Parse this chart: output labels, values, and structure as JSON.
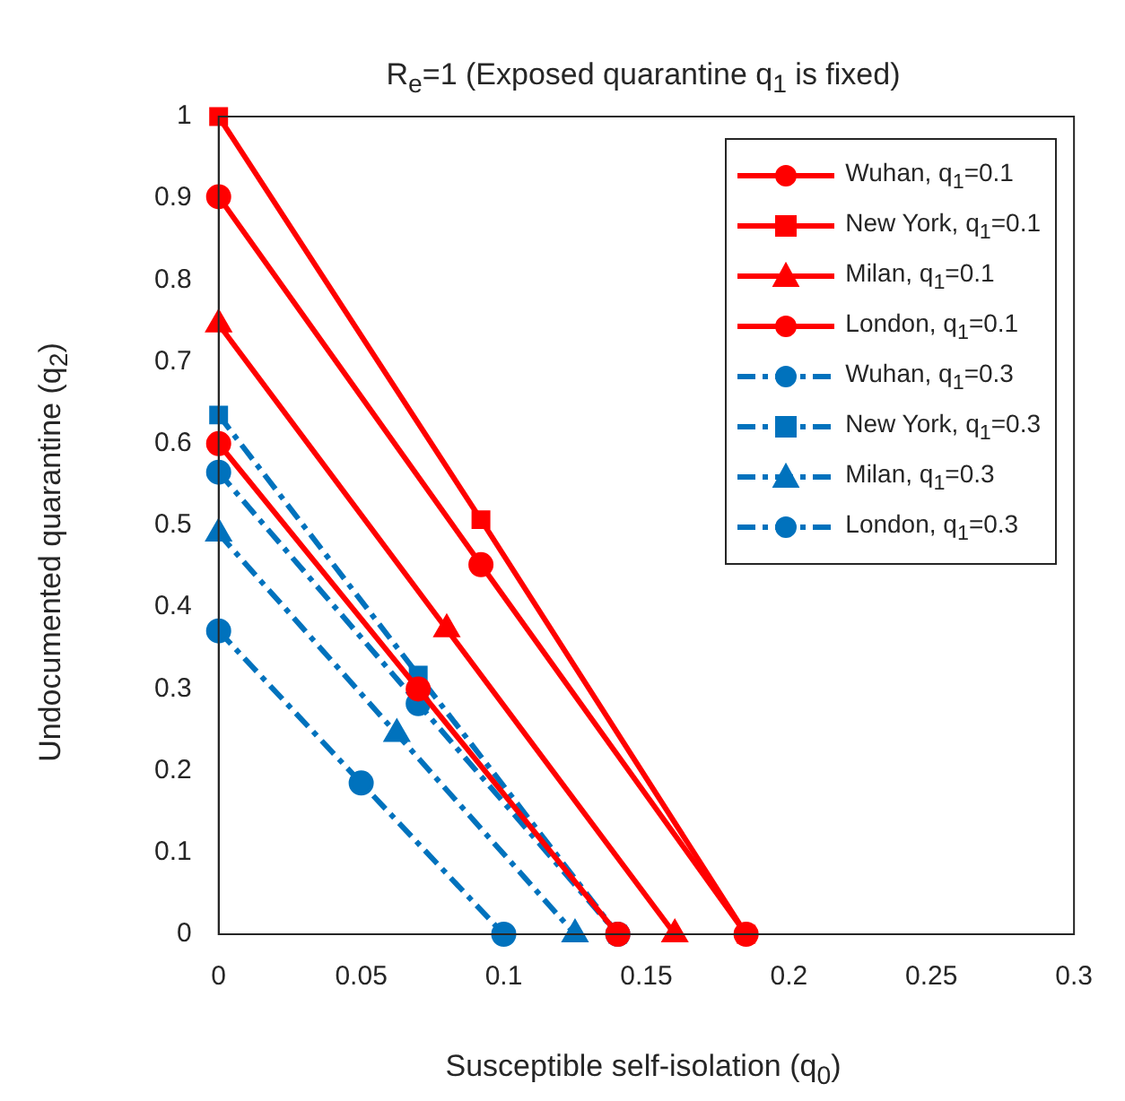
{
  "chart_data": {
    "type": "line",
    "title": "R$_{e}$=1 (Exposed quarantine q$_{1}$ is fixed)",
    "xlabel": "Susceptible self-isolation (q$_{0}$)",
    "ylabel": "Undocumented quarantine (q$_{2}$)",
    "xlim": [
      0,
      0.3
    ],
    "xticks": [
      0,
      0.05,
      0.1,
      0.15,
      0.2,
      0.25,
      0.3
    ],
    "ylim": [
      0,
      1
    ],
    "yticks": [
      0,
      0.1,
      0.2,
      0.3,
      0.4,
      0.5,
      0.6,
      0.7,
      0.8,
      0.9,
      1
    ],
    "grid": false,
    "legend": "top right",
    "series": [
      {
        "name": "Wuhan, q$_{1}$=0.1",
        "color": "#ff0000",
        "marker": "circle",
        "line_style": "solid",
        "x": [
          0,
          0.07,
          0.14
        ],
        "values": [
          0.6,
          0.3,
          0
        ]
      },
      {
        "name": "New York, q$_{1}$=0.1",
        "color": "#ff0000",
        "marker": "square",
        "line_style": "solid",
        "x": [
          0,
          0.092,
          0.185
        ],
        "values": [
          1,
          0.507,
          0
        ]
      },
      {
        "name": "Milan, q$_{1}$=0.1",
        "color": "#ff0000",
        "marker": "triangle",
        "line_style": "solid",
        "x": [
          0,
          0.08,
          0.16
        ],
        "values": [
          0.746,
          0.373,
          0
        ]
      },
      {
        "name": "London, q$_{1}$=0.1",
        "color": "#ff0000",
        "marker": "circle",
        "line_style": "solid",
        "x": [
          0,
          0.092,
          0.185
        ],
        "values": [
          0.902,
          0.452,
          0
        ]
      },
      {
        "name": "Wuhan, q$_{1}$=0.3",
        "color": "#0072bd",
        "marker": "circle",
        "line_style": "dashed",
        "x": [
          0,
          0.05,
          0.1
        ],
        "values": [
          0.371,
          0.185,
          0
        ]
      },
      {
        "name": "New York, q$_{1}$=0.3",
        "color": "#0072bd",
        "marker": "square",
        "line_style": "dashed",
        "x": [
          0,
          0.07,
          0.14
        ],
        "values": [
          0.635,
          0.317,
          0
        ]
      },
      {
        "name": "Milan, q$_{1}$=0.3",
        "color": "#0072bd",
        "marker": "triangle",
        "line_style": "dashed",
        "x": [
          0,
          0.0625,
          0.125
        ],
        "values": [
          0.49,
          0.245,
          0
        ]
      },
      {
        "name": "London, q$_{1}$=0.3",
        "color": "#0072bd",
        "marker": "circle",
        "line_style": "dashed",
        "x": [
          0,
          0.07,
          0.14
        ],
        "values": [
          0.565,
          0.282,
          0
        ]
      }
    ]
  }
}
